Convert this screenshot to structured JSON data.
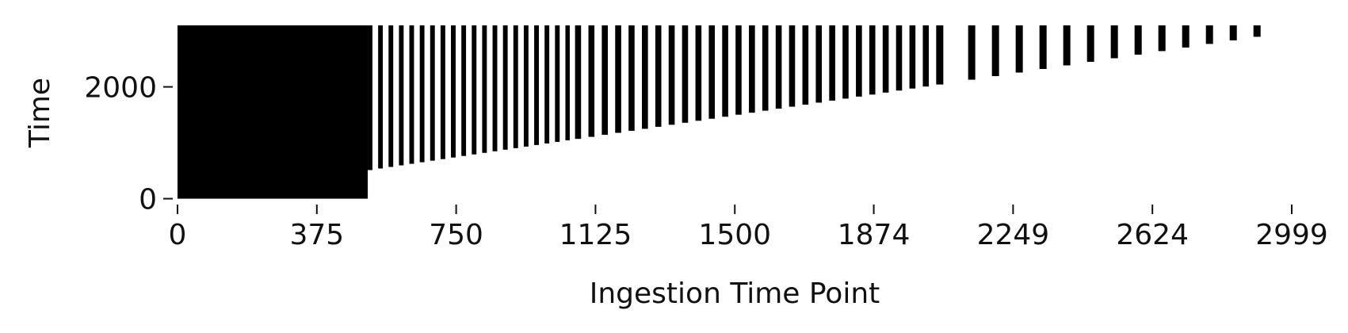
{
  "chart_data": {
    "type": "bar",
    "title": "",
    "xlabel": "Ingestion Time Point",
    "ylabel": "Time",
    "xlim": [
      0,
      2999
    ],
    "ylim": [
      -20,
      3100
    ],
    "x_ticks": [
      0,
      375,
      750,
      1125,
      1500,
      1874,
      2249,
      2624,
      2999
    ],
    "x_tick_labels": [
      "0",
      "375",
      "750",
      "1125",
      "1500",
      "1874",
      "2249",
      "2624",
      "2999"
    ],
    "y_ticks": [
      0,
      2000
    ],
    "y_tick_labels": [
      "0",
      "2000"
    ],
    "grid": false,
    "legend": "none",
    "bar_color": "#000000",
    "series": [
      {
        "kind": "vertical spans from ingestion time point up to 3100",
        "bottom": [
          0,
          512,
          540,
          568,
          596,
          624,
          652,
          680,
          708,
          736,
          764,
          792,
          820,
          848,
          876,
          904,
          932,
          960,
          988,
          1016,
          1044,
          1070,
          1106,
          1142,
          1178,
          1214,
          1250,
          1286,
          1322,
          1358,
          1394,
          1430,
          1466,
          1502,
          1538,
          1574,
          1610,
          1646,
          1682,
          1718,
          1754,
          1790,
          1826,
          1862,
          1898,
          1934,
          1970,
          2006,
          2042,
          2128,
          2192,
          2256,
          2320,
          2384,
          2448,
          2512,
          2576,
          2640,
          2704,
          2768,
          2832,
          2896
        ],
        "top": 3100
      }
    ]
  }
}
